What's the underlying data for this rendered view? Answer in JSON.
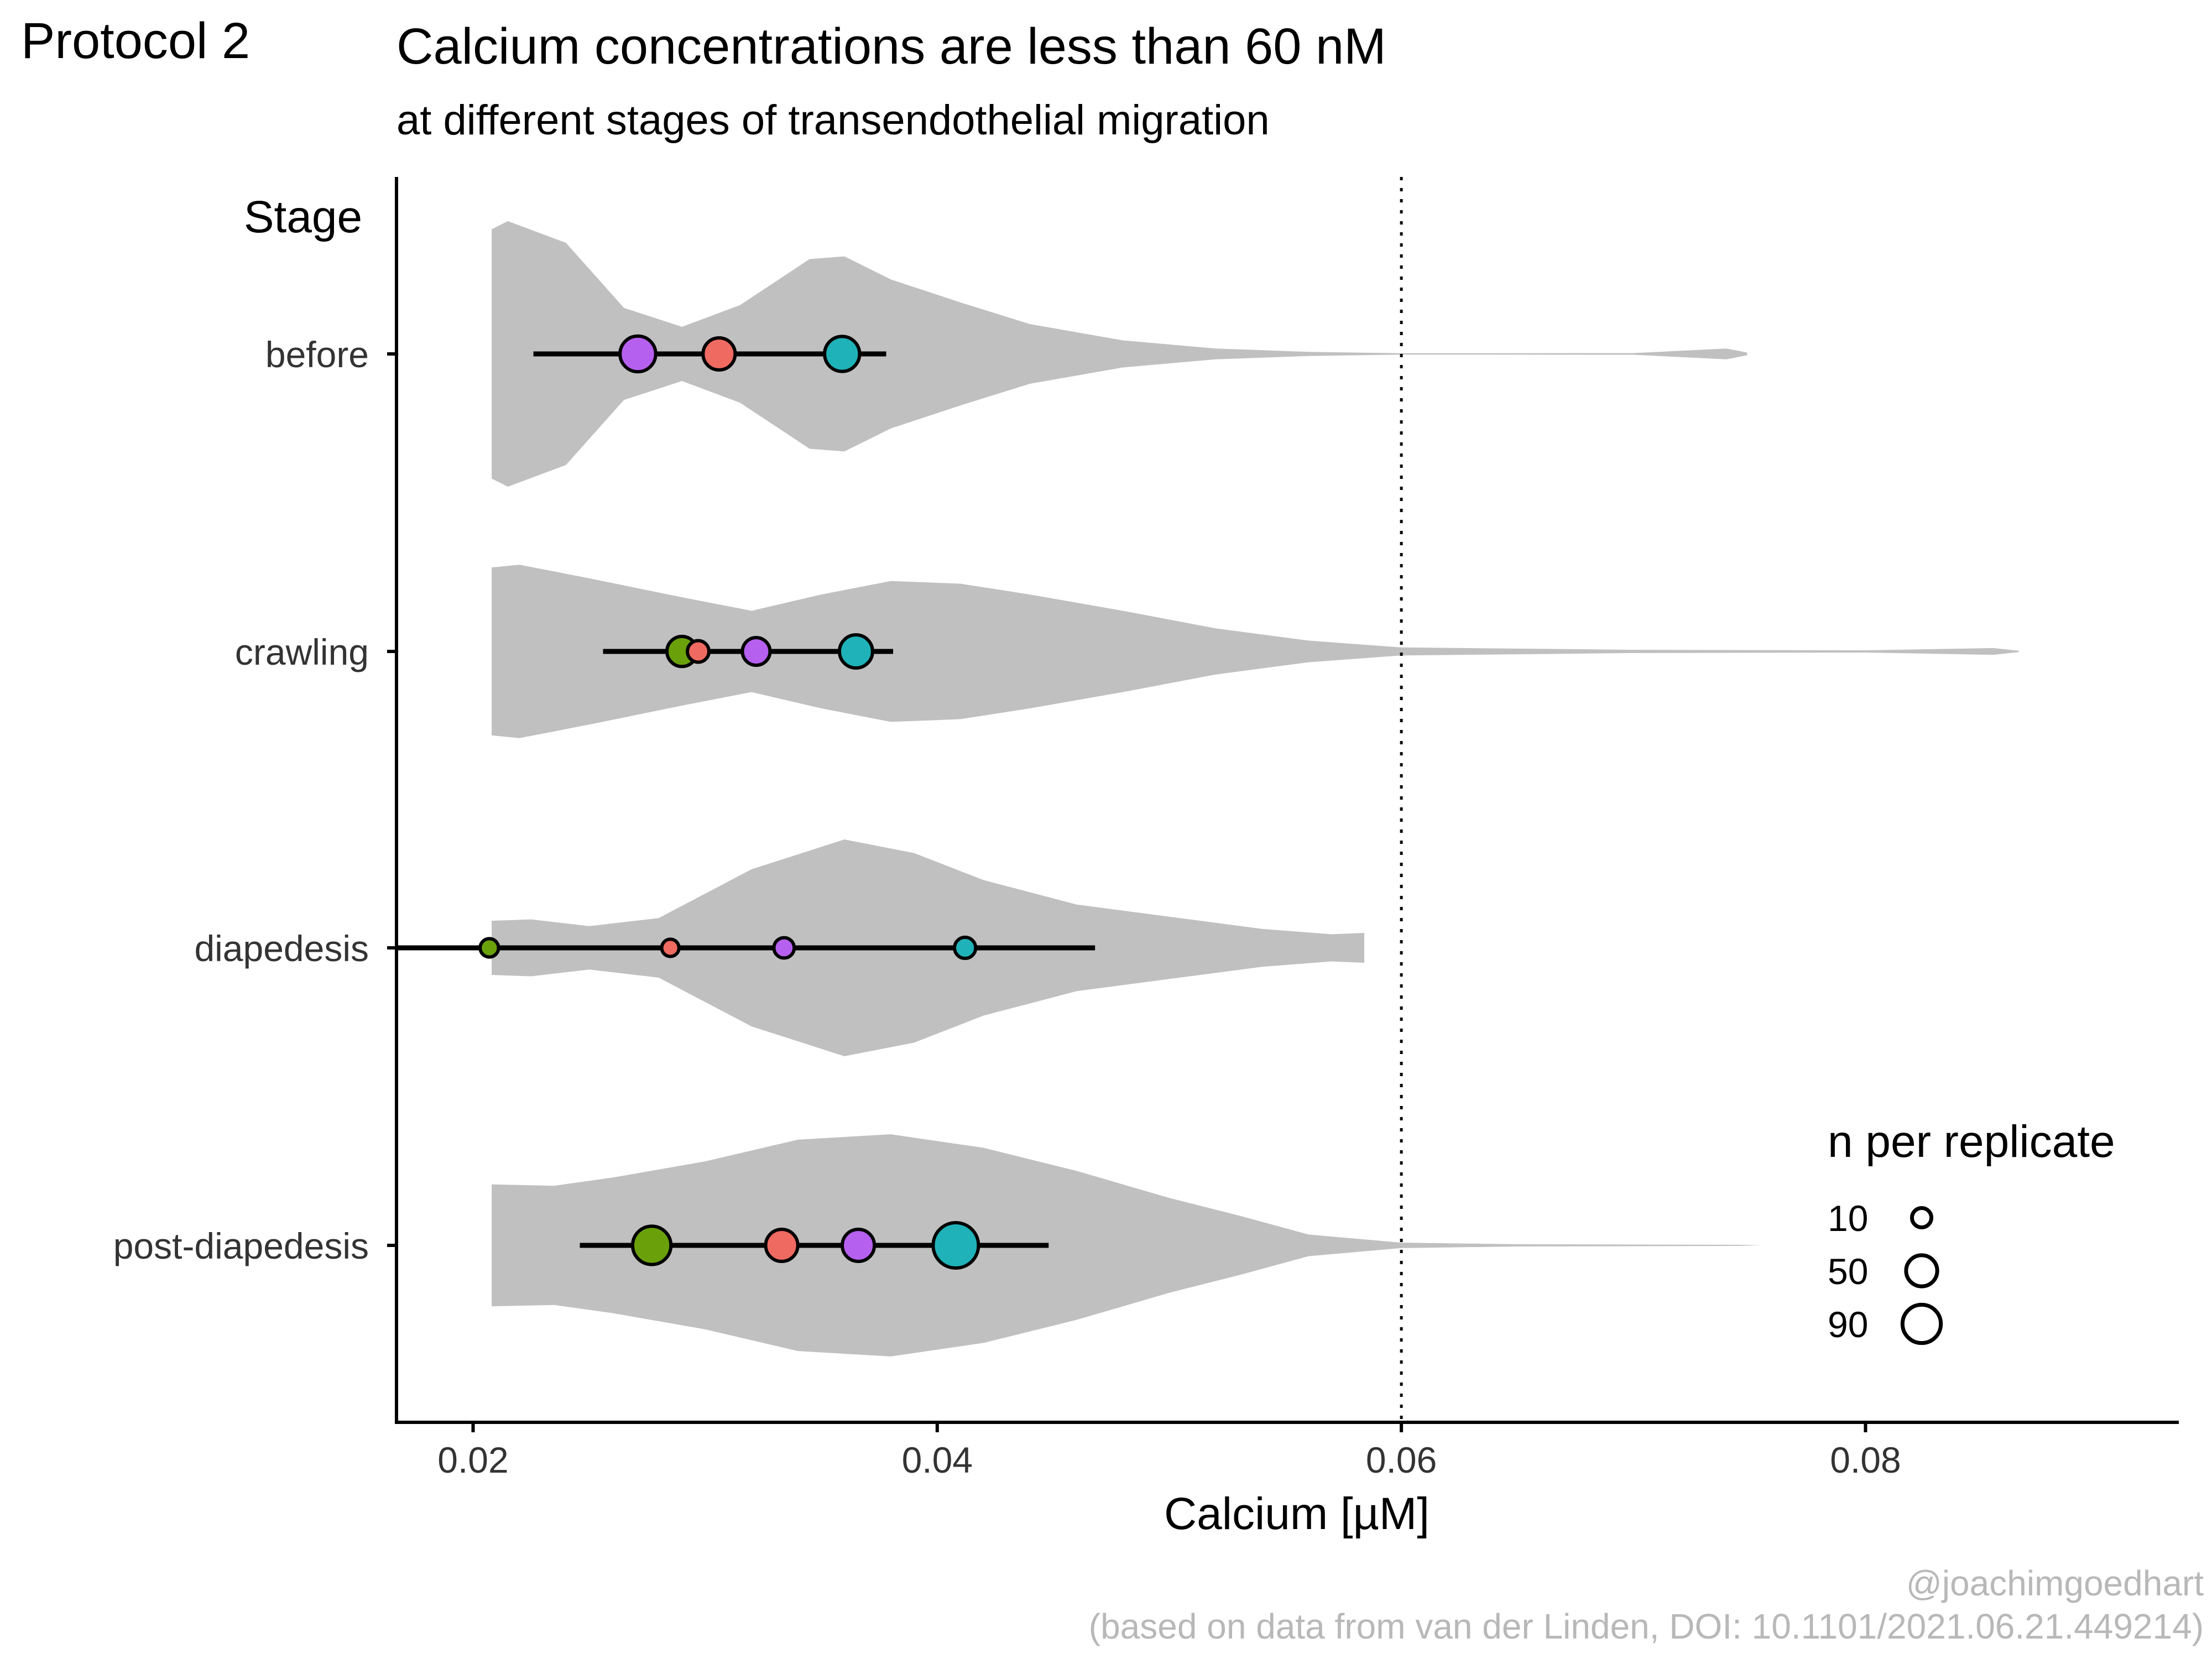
{
  "page": {
    "protocol_label": "Protocol 2",
    "caption_handle": "@joachimgoedhart",
    "caption_source": "(based on data from van der Linden, DOI: 10.1101/2021.06.21.449214)"
  },
  "chart_data": {
    "type": "violin",
    "title": "Calcium concentrations are less than 60 nM",
    "subtitle": "at different stages of transendothelial migration",
    "xlabel": "Calcium [µM]",
    "ylabel": "Stage",
    "xlim": [
      0.0167,
      0.0935
    ],
    "xticks": [
      0.02,
      0.04,
      0.06,
      0.08
    ],
    "xtick_labels": [
      "0.02",
      "0.04",
      "0.06",
      "0.08"
    ],
    "threshold": 0.06,
    "categories": [
      "before",
      "crawling",
      "diapedesis",
      "post-diapedesis"
    ],
    "replicate_colors": {
      "green": "#6AA10A",
      "red": "#EF6A61",
      "purple": "#B660F0",
      "teal": "#1FB2B8"
    },
    "violin_color": "#C0C0C0",
    "violins": [
      {
        "stage": "before",
        "profile": [
          [
            0.0208,
            0.92
          ],
          [
            0.0215,
            0.98
          ],
          [
            0.024,
            0.82
          ],
          [
            0.0265,
            0.34
          ],
          [
            0.029,
            0.2
          ],
          [
            0.0315,
            0.36
          ],
          [
            0.0345,
            0.7
          ],
          [
            0.036,
            0.72
          ],
          [
            0.038,
            0.55
          ],
          [
            0.041,
            0.38
          ],
          [
            0.044,
            0.22
          ],
          [
            0.048,
            0.1
          ],
          [
            0.052,
            0.04
          ],
          [
            0.056,
            0.015
          ],
          [
            0.06,
            0.005
          ],
          [
            0.07,
            0.006
          ],
          [
            0.074,
            0.04
          ],
          [
            0.0749,
            0.01
          ]
        ]
      },
      {
        "stage": "crawling",
        "profile": [
          [
            0.0208,
            0.62
          ],
          [
            0.022,
            0.64
          ],
          [
            0.025,
            0.54
          ],
          [
            0.029,
            0.4
          ],
          [
            0.032,
            0.3
          ],
          [
            0.035,
            0.42
          ],
          [
            0.038,
            0.52
          ],
          [
            0.041,
            0.5
          ],
          [
            0.044,
            0.42
          ],
          [
            0.048,
            0.3
          ],
          [
            0.052,
            0.17
          ],
          [
            0.056,
            0.08
          ],
          [
            0.06,
            0.03
          ],
          [
            0.07,
            0.012
          ],
          [
            0.08,
            0.008
          ],
          [
            0.0855,
            0.025
          ],
          [
            0.0866,
            0.005
          ]
        ]
      },
      {
        "stage": "diapedesis",
        "profile": [
          [
            0.0208,
            0.2
          ],
          [
            0.0225,
            0.21
          ],
          [
            0.025,
            0.16
          ],
          [
            0.028,
            0.22
          ],
          [
            0.032,
            0.58
          ],
          [
            0.036,
            0.8
          ],
          [
            0.039,
            0.7
          ],
          [
            0.042,
            0.5
          ],
          [
            0.046,
            0.32
          ],
          [
            0.05,
            0.23
          ],
          [
            0.054,
            0.14
          ],
          [
            0.057,
            0.1
          ],
          [
            0.0584,
            0.11
          ],
          [
            0.0584,
            0.0
          ]
        ]
      },
      {
        "stage": "post-diapedesis",
        "profile": [
          [
            0.0208,
            0.45
          ],
          [
            0.0235,
            0.44
          ],
          [
            0.026,
            0.5
          ],
          [
            0.03,
            0.62
          ],
          [
            0.034,
            0.78
          ],
          [
            0.038,
            0.82
          ],
          [
            0.042,
            0.72
          ],
          [
            0.046,
            0.55
          ],
          [
            0.05,
            0.35
          ],
          [
            0.053,
            0.22
          ],
          [
            0.056,
            0.08
          ],
          [
            0.06,
            0.02
          ],
          [
            0.065,
            0.008
          ],
          [
            0.07,
            0.006
          ],
          [
            0.0745,
            0.004
          ],
          [
            0.0755,
            0.0
          ]
        ]
      }
    ],
    "replicates": [
      {
        "stage": "before",
        "color": "purple",
        "mean": 0.0271,
        "n": 74
      },
      {
        "stage": "before",
        "color": "red",
        "mean": 0.0306,
        "n": 55
      },
      {
        "stage": "before",
        "color": "teal",
        "mean": 0.0359,
        "n": 70
      },
      {
        "stage": "crawling",
        "color": "red",
        "mean": 0.0297,
        "n": 15
      },
      {
        "stage": "crawling",
        "color": "green",
        "mean": 0.029,
        "n": 45
      },
      {
        "stage": "crawling",
        "color": "purple",
        "mean": 0.0322,
        "n": 35
      },
      {
        "stage": "crawling",
        "color": "teal",
        "mean": 0.0365,
        "n": 60
      },
      {
        "stage": "diapedesis",
        "color": "green",
        "mean": 0.0207,
        "n": 8
      },
      {
        "stage": "diapedesis",
        "color": "red",
        "mean": 0.0285,
        "n": 6
      },
      {
        "stage": "diapedesis",
        "color": "purple",
        "mean": 0.0334,
        "n": 12
      },
      {
        "stage": "diapedesis",
        "color": "teal",
        "mean": 0.0412,
        "n": 14
      },
      {
        "stage": "post-diapedesis",
        "color": "green",
        "mean": 0.0277,
        "n": 90
      },
      {
        "stage": "post-diapedesis",
        "color": "red",
        "mean": 0.0333,
        "n": 55
      },
      {
        "stage": "post-diapedesis",
        "color": "purple",
        "mean": 0.0366,
        "n": 55
      },
      {
        "stage": "post-diapedesis",
        "color": "teal",
        "mean": 0.0408,
        "n": 140
      }
    ],
    "error_bars": [
      {
        "stage": "before",
        "low": 0.0226,
        "high": 0.0378
      },
      {
        "stage": "crawling",
        "low": 0.0256,
        "high": 0.0381
      },
      {
        "stage": "diapedesis",
        "low": 0.0167,
        "high": 0.0468
      },
      {
        "stage": "post-diapedesis",
        "low": 0.0246,
        "high": 0.0448
      }
    ],
    "legend": {
      "title": "n per replicate",
      "position": "bottom-right",
      "entries": [
        {
          "label": "10",
          "n": 10
        },
        {
          "label": "50",
          "n": 50
        },
        {
          "label": "90",
          "n": 90
        }
      ]
    }
  }
}
